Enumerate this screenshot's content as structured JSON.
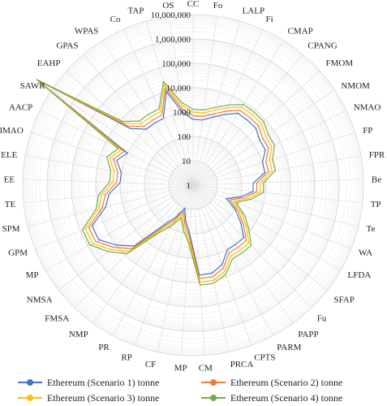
{
  "chart_data": {
    "type": "radar",
    "scale": "log10",
    "rlim": [
      1,
      10000000
    ],
    "radial_ticks": [
      "1",
      "10",
      "100",
      "1000",
      "10,000",
      "100,000",
      "1,000,000",
      "10,000,000"
    ],
    "categories": [
      "CC",
      "Fo",
      "LALP",
      "Fi",
      "CMAP",
      "CPANG",
      "FMOM",
      "NMOM",
      "NMAO",
      "FP",
      "FPR",
      "Be",
      "TP",
      "Te",
      "WA",
      "LFDA",
      "SFAP",
      "Fu",
      "PAPP",
      "PARM",
      "CPTS",
      "PRCA",
      "CM",
      "MP",
      "CF",
      "RP",
      "PR",
      "NMP",
      "FMSA",
      "NMSA",
      "MP",
      "GPM",
      "SPM",
      "TE",
      "EE",
      "ELE",
      "IMAO",
      "AACP",
      "SAWR",
      "EAHP",
      "GPAS",
      "WPAS",
      "Co",
      "TAP",
      "OS"
    ],
    "series": [
      {
        "name": "Ethereum (Scenario 1) tonne",
        "color": "#4472c4",
        "values": [
          500,
          500,
          800,
          1500,
          3000,
          3000,
          3000,
          2000,
          2000,
          1000,
          1000,
          300,
          300,
          100,
          30,
          100,
          300,
          1000,
          1000,
          1000,
          3000,
          5000,
          5000,
          100,
          30,
          10,
          30,
          100,
          3000,
          10000,
          30000,
          30000,
          5000,
          3000,
          1000,
          1000,
          2000,
          1000,
          50000000,
          3000,
          1000,
          1000,
          1000,
          10000,
          1000
        ]
      },
      {
        "name": "Ethereum (Scenario 2) tonne",
        "color": "#ed7d31",
        "values": [
          700,
          700,
          1100,
          2100,
          4200,
          4200,
          4200,
          2800,
          2800,
          1400,
          1400,
          420,
          420,
          140,
          42,
          140,
          420,
          1400,
          1400,
          1400,
          4200,
          7000,
          7000,
          140,
          42,
          14,
          42,
          140,
          4200,
          14000,
          42000,
          42000,
          7000,
          4200,
          1400,
          1400,
          2800,
          1400,
          52000000,
          4200,
          1400,
          1400,
          1400,
          14000,
          1400
        ]
      },
      {
        "name": "Ethereum (Scenario 3) tonne",
        "color": "#ffc000",
        "values": [
          1000,
          1000,
          1600,
          3000,
          6000,
          6000,
          6000,
          4000,
          4000,
          2000,
          2000,
          600,
          600,
          200,
          60,
          200,
          600,
          2000,
          2000,
          2000,
          6000,
          10000,
          10000,
          200,
          60,
          20,
          60,
          200,
          6000,
          20000,
          60000,
          60000,
          10000,
          6000,
          2000,
          2000,
          4000,
          2000,
          55000000,
          6000,
          2000,
          2000,
          2000,
          20000,
          2000
        ]
      },
      {
        "name": "Ethereum (Scenario 4) tonne",
        "color": "#70ad47",
        "values": [
          1300,
          1300,
          2100,
          4000,
          8000,
          8000,
          8000,
          5300,
          5300,
          2700,
          2700,
          800,
          800,
          270,
          80,
          270,
          800,
          2700,
          2700,
          2700,
          8000,
          13000,
          13000,
          270,
          80,
          27,
          80,
          270,
          8000,
          27000,
          80000,
          80000,
          13000,
          8000,
          2700,
          2700,
          5300,
          2700,
          58000000,
          8000,
          2700,
          2700,
          2700,
          27000,
          2700
        ]
      }
    ]
  }
}
